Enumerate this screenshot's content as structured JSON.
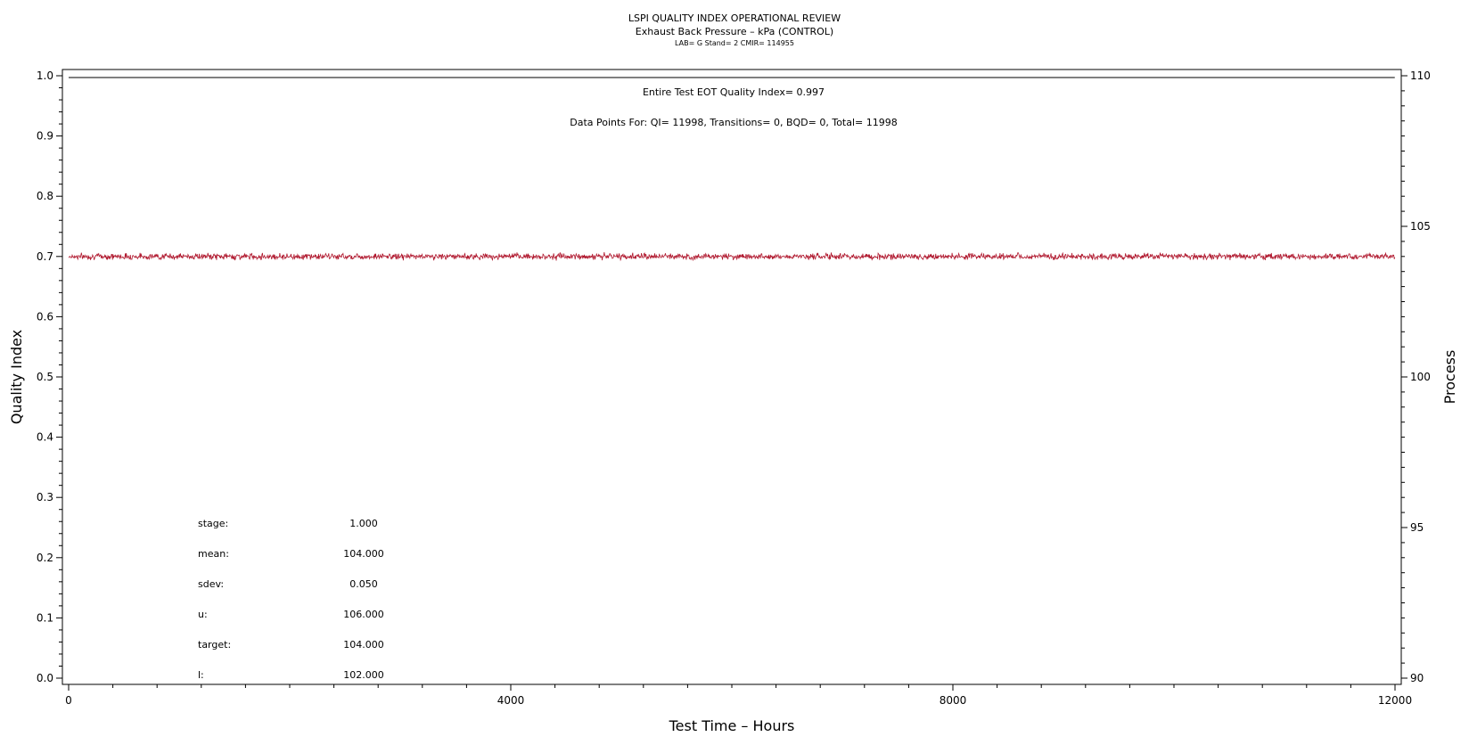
{
  "titles": {
    "main": "LSPI QUALITY INDEX OPERATIONAL REVIEW",
    "sub": "Exhaust Back Pressure – kPa (CONTROL)",
    "info": "LAB= G Stand= 2 CMIR= 114955"
  },
  "annotations": {
    "eot": "Entire Test EOT Quality Index=   0.997",
    "points": "Data Points For: QI= 11998, Transitions=     0, BQD=     0, Total= 11998"
  },
  "stats": [
    {
      "label": "stage:",
      "value": "1.000"
    },
    {
      "label": "mean:",
      "value": "104.000"
    },
    {
      "label": "sdev:",
      "value": "0.050"
    },
    {
      "label": "u:",
      "value": "106.000"
    },
    {
      "label": "target:",
      "value": "104.000"
    },
    {
      "label": "l:",
      "value": "102.000"
    }
  ],
  "chart_data": {
    "type": "line",
    "xlabel": "Test Time – Hours",
    "ylabel": "Quality Index",
    "y2label": "Process",
    "xlim": [
      0,
      12000
    ],
    "ylim": [
      0.0,
      1.0
    ],
    "y2lim": [
      90,
      110
    ],
    "x_ticks": [
      0,
      4000,
      8000,
      12000
    ],
    "y_ticks": [
      "0.0",
      "0.1",
      "0.2",
      "0.3",
      "0.4",
      "0.5",
      "0.6",
      "0.7",
      "0.8",
      "0.9",
      "1.0"
    ],
    "y2_ticks": [
      90,
      95,
      100,
      105,
      110
    ],
    "grid": false,
    "series": [
      {
        "axis": "right",
        "color": "#b0182e",
        "x": [
          0,
          1000,
          2000,
          3000,
          4000,
          5000,
          6000,
          7000,
          8000,
          9000,
          10000,
          11000,
          11998
        ],
        "values": [
          104.0,
          104.0,
          104.0,
          104.0,
          104.0,
          104.0,
          104.0,
          104.0,
          104.0,
          104.0,
          104.0,
          104.0,
          104.0
        ],
        "noise_sdev": 0.05
      },
      {
        "axis": "left",
        "color": "#000000",
        "x": [
          0,
          11998
        ],
        "values": [
          0.997,
          0.997
        ]
      }
    ]
  }
}
